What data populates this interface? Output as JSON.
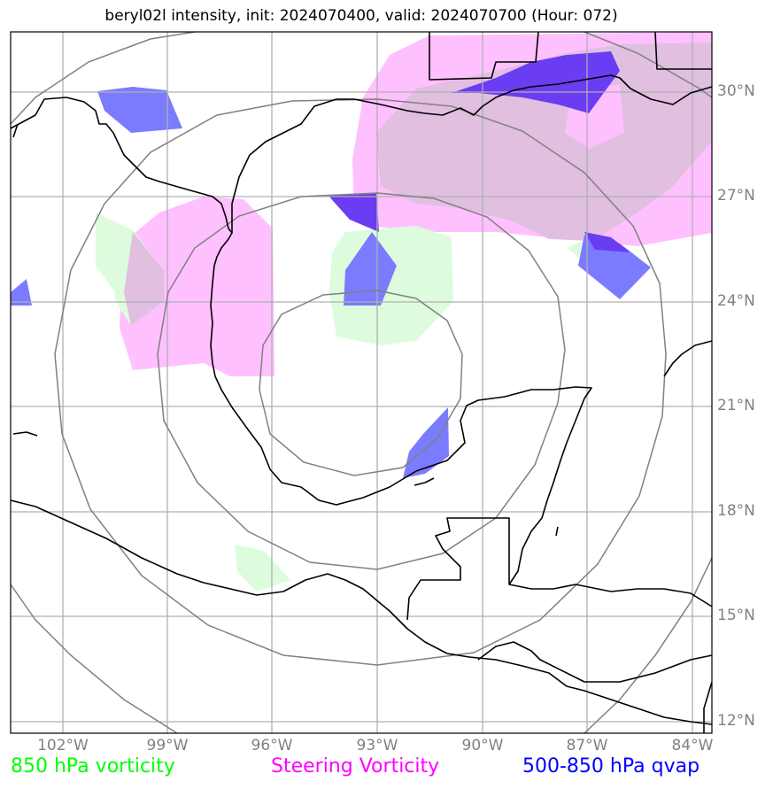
{
  "title": "beryl02l intensity, init: 2024070400, valid: 2024070700 (Hour: 072)",
  "lat_labels": [
    "30°N",
    "27°N",
    "24°N",
    "21°N",
    "18°N",
    "15°N",
    "12°N"
  ],
  "lon_labels": [
    "102°W",
    "99°W",
    "96°W",
    "93°W",
    "90°W",
    "87°W",
    "84°W"
  ],
  "legend": {
    "vort850": {
      "label": "850 hPa vorticity",
      "color": "#00ff00"
    },
    "steering": {
      "label": "Steering Vorticity",
      "color": "#ff00ff"
    },
    "qvap": {
      "label": "500-850 hPa qvap",
      "color": "#0000ff"
    }
  },
  "colors": {
    "vort850_fill": "#ddfcdd",
    "steering_fill": "#ffc0ff",
    "steering_dark": "#e0bfe0",
    "qvap_fill": "#7b7bff",
    "qvap_dark": "#6a3cf2",
    "grid": "#b0b0b0",
    "range_ring": "#808080",
    "coast": "#000000"
  }
}
